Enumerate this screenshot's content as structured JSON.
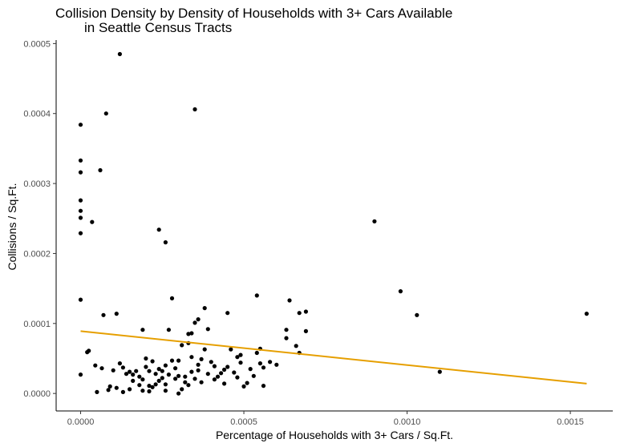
{
  "chart_data": {
    "type": "scatter",
    "title_lines": [
      "Collision Density by Density of Households with 3+ Cars Available",
      "in Seattle Census Tracts"
    ],
    "xlabel": "Percentage of Households with 3+ Cars / Sq.Ft.",
    "ylabel": "Collisions / Sq.Ft.",
    "xlim": [
      -7.5e-05,
      0.00163
    ],
    "ylim": [
      -2.5e-05,
      0.000505
    ],
    "x_ticks": [
      0,
      0.0005,
      0.001,
      0.0015
    ],
    "x_tick_labels": [
      "0.0000",
      "0.0005",
      "0.0010",
      "0.0015"
    ],
    "y_ticks": [
      0,
      0.0001,
      0.0002,
      0.0003,
      0.0004,
      0.0005
    ],
    "y_tick_labels": [
      "0.0000",
      "0.0001",
      "0.0002",
      "0.0003",
      "0.0004",
      "0.0005"
    ],
    "grid": false,
    "point_color": "#000000",
    "trend_color": "#E69F00",
    "trend": {
      "x": [
        0,
        0.00155
      ],
      "y": [
        8.9e-05,
        1.4e-05
      ]
    },
    "points": [
      [
        0.0,
        0.000384
      ],
      [
        0.0,
        0.000333
      ],
      [
        0.0,
        0.000316
      ],
      [
        0.0,
        0.000276
      ],
      [
        0.0,
        0.000261
      ],
      [
        0.0,
        0.000251
      ],
      [
        0.0,
        0.000229
      ],
      [
        0.0,
        0.000134
      ],
      [
        0.0,
        2.7e-05
      ],
      [
        0.00012,
        0.000485
      ],
      [
        7.8e-05,
        0.0004
      ],
      [
        0.00035,
        0.000406
      ],
      [
        6e-05,
        0.000319
      ],
      [
        3.5e-05,
        0.000245
      ],
      [
        0.00024,
        0.000234
      ],
      [
        0.00026,
        0.000216
      ],
      [
        0.0009,
        0.000246
      ],
      [
        0.00098,
        0.000146
      ],
      [
        0.00103,
        0.000112
      ],
      [
        0.0011,
        3.1e-05
      ],
      [
        0.00155,
        0.000114
      ],
      [
        0.00054,
        0.00014
      ],
      [
        0.00064,
        0.000133
      ],
      [
        0.00069,
        0.000117
      ],
      [
        0.00067,
        0.000115
      ],
      [
        0.00069,
        8.9e-05
      ],
      [
        0.00063,
        9.1e-05
      ],
      [
        0.00063,
        7.9e-05
      ],
      [
        0.00066,
        6.8e-05
      ],
      [
        0.00067,
        5.8e-05
      ],
      [
        0.00058,
        4.5e-05
      ],
      [
        0.0006,
        4.1e-05
      ],
      [
        0.00055,
        6.4e-05
      ],
      [
        0.00054,
        5.8e-05
      ],
      [
        0.00055,
        4.3e-05
      ],
      [
        0.00056,
        3.7e-05
      ],
      [
        0.00053,
        2.5e-05
      ],
      [
        0.00056,
        1.1e-05
      ],
      [
        0.00052,
        3.5e-05
      ],
      [
        0.00051,
        1.5e-05
      ],
      [
        0.00049,
        5.5e-05
      ],
      [
        0.00048,
        5.2e-05
      ],
      [
        0.00046,
        6.3e-05
      ],
      [
        0.00045,
        3.8e-05
      ],
      [
        0.00047,
        3e-05
      ],
      [
        0.00048,
        2.3e-05
      ],
      [
        0.00043,
        2.9e-05
      ],
      [
        0.00042,
        2.4e-05
      ],
      [
        0.00044,
        3.4e-05
      ],
      [
        0.00038,
        0.000122
      ],
      [
        0.00045,
        0.000115
      ],
      [
        0.00036,
        0.000106
      ],
      [
        0.00035,
        0.000101
      ],
      [
        0.00039,
        9.2e-05
      ],
      [
        0.00033,
        8.5e-05
      ],
      [
        0.00034,
        8.6e-05
      ],
      [
        0.00031,
        6.9e-05
      ],
      [
        0.00038,
        6.3e-05
      ],
      [
        0.0004,
        4.5e-05
      ],
      [
        0.00041,
        3.9e-05
      ],
      [
        0.00036,
        4.1e-05
      ],
      [
        0.00034,
        3.1e-05
      ],
      [
        0.00032,
        2.4e-05
      ],
      [
        0.00035,
        2.1e-05
      ],
      [
        0.00037,
        1.6e-05
      ],
      [
        0.00033,
        1.2e-05
      ],
      [
        0.00031,
        6e-06
      ],
      [
        0.0003,
        0.0
      ],
      [
        0.00028,
        0.000136
      ],
      [
        0.00027,
        9.1e-05
      ],
      [
        0.00026,
        4e-05
      ],
      [
        0.00025,
        3.2e-05
      ],
      [
        0.00028,
        4.7e-05
      ],
      [
        0.00027,
        2.7e-05
      ],
      [
        0.00029,
        2.1e-05
      ],
      [
        0.00026,
        1.3e-05
      ],
      [
        0.00024,
        1.8e-05
      ],
      [
        0.00023,
        2.8e-05
      ],
      [
        0.00022,
        4.6e-05
      ],
      [
        0.00021,
        3.2e-05
      ],
      [
        0.0002,
        5e-05
      ],
      [
        0.00019,
        2e-05
      ],
      [
        0.00019,
        9.1e-05
      ],
      [
        0.00018,
        1.2e-05
      ],
      [
        0.00017,
        3.2e-05
      ],
      [
        0.00016,
        2.7e-05
      ],
      [
        0.00015,
        6e-06
      ],
      [
        0.00014,
        2.8e-05
      ],
      [
        0.00013,
        3.7e-05
      ],
      [
        0.00012,
        4.3e-05
      ],
      [
        0.00011,
        0.000114
      ],
      [
        0.00011,
        8e-06
      ],
      [
        0.0001,
        3.3e-05
      ],
      [
        9e-05,
        1e-05
      ],
      [
        8.5e-05,
        5e-06
      ],
      [
        7e-05,
        0.000112
      ],
      [
        6.5e-05,
        3.6e-05
      ],
      [
        4.5e-05,
        4e-05
      ],
      [
        2.5e-05,
        6.1e-05
      ],
      [
        2e-05,
        5.9e-05
      ],
      [
        5e-05,
        2e-06
      ],
      [
        0.00015,
        3.1e-05
      ],
      [
        0.00016,
        1.8e-05
      ],
      [
        0.00018,
        2.4e-05
      ],
      [
        0.0002,
        3.8e-05
      ],
      [
        0.00021,
        3e-06
      ],
      [
        0.00022,
        9e-06
      ],
      [
        0.00023,
        1.3e-05
      ],
      [
        0.00025,
        2.2e-05
      ],
      [
        0.00029,
        3.6e-05
      ],
      [
        0.0003,
        4.7e-05
      ],
      [
        0.00032,
        1.6e-05
      ],
      [
        0.00036,
        3.3e-05
      ],
      [
        0.00037,
        4.9e-05
      ],
      [
        0.00039,
        2.8e-05
      ],
      [
        0.00041,
        2e-05
      ],
      [
        0.00044,
        1.4e-05
      ],
      [
        0.00049,
        4.4e-05
      ],
      [
        0.0005,
        1e-05
      ],
      [
        0.00033,
        7.2e-05
      ],
      [
        0.00019,
        4e-06
      ],
      [
        0.00013,
        2e-06
      ],
      [
        0.00021,
        1.1e-05
      ],
      [
        0.00024,
        3.5e-05
      ],
      [
        0.00026,
        4e-06
      ],
      [
        0.0003,
        2.5e-05
      ],
      [
        0.00034,
        5.2e-05
      ]
    ]
  }
}
